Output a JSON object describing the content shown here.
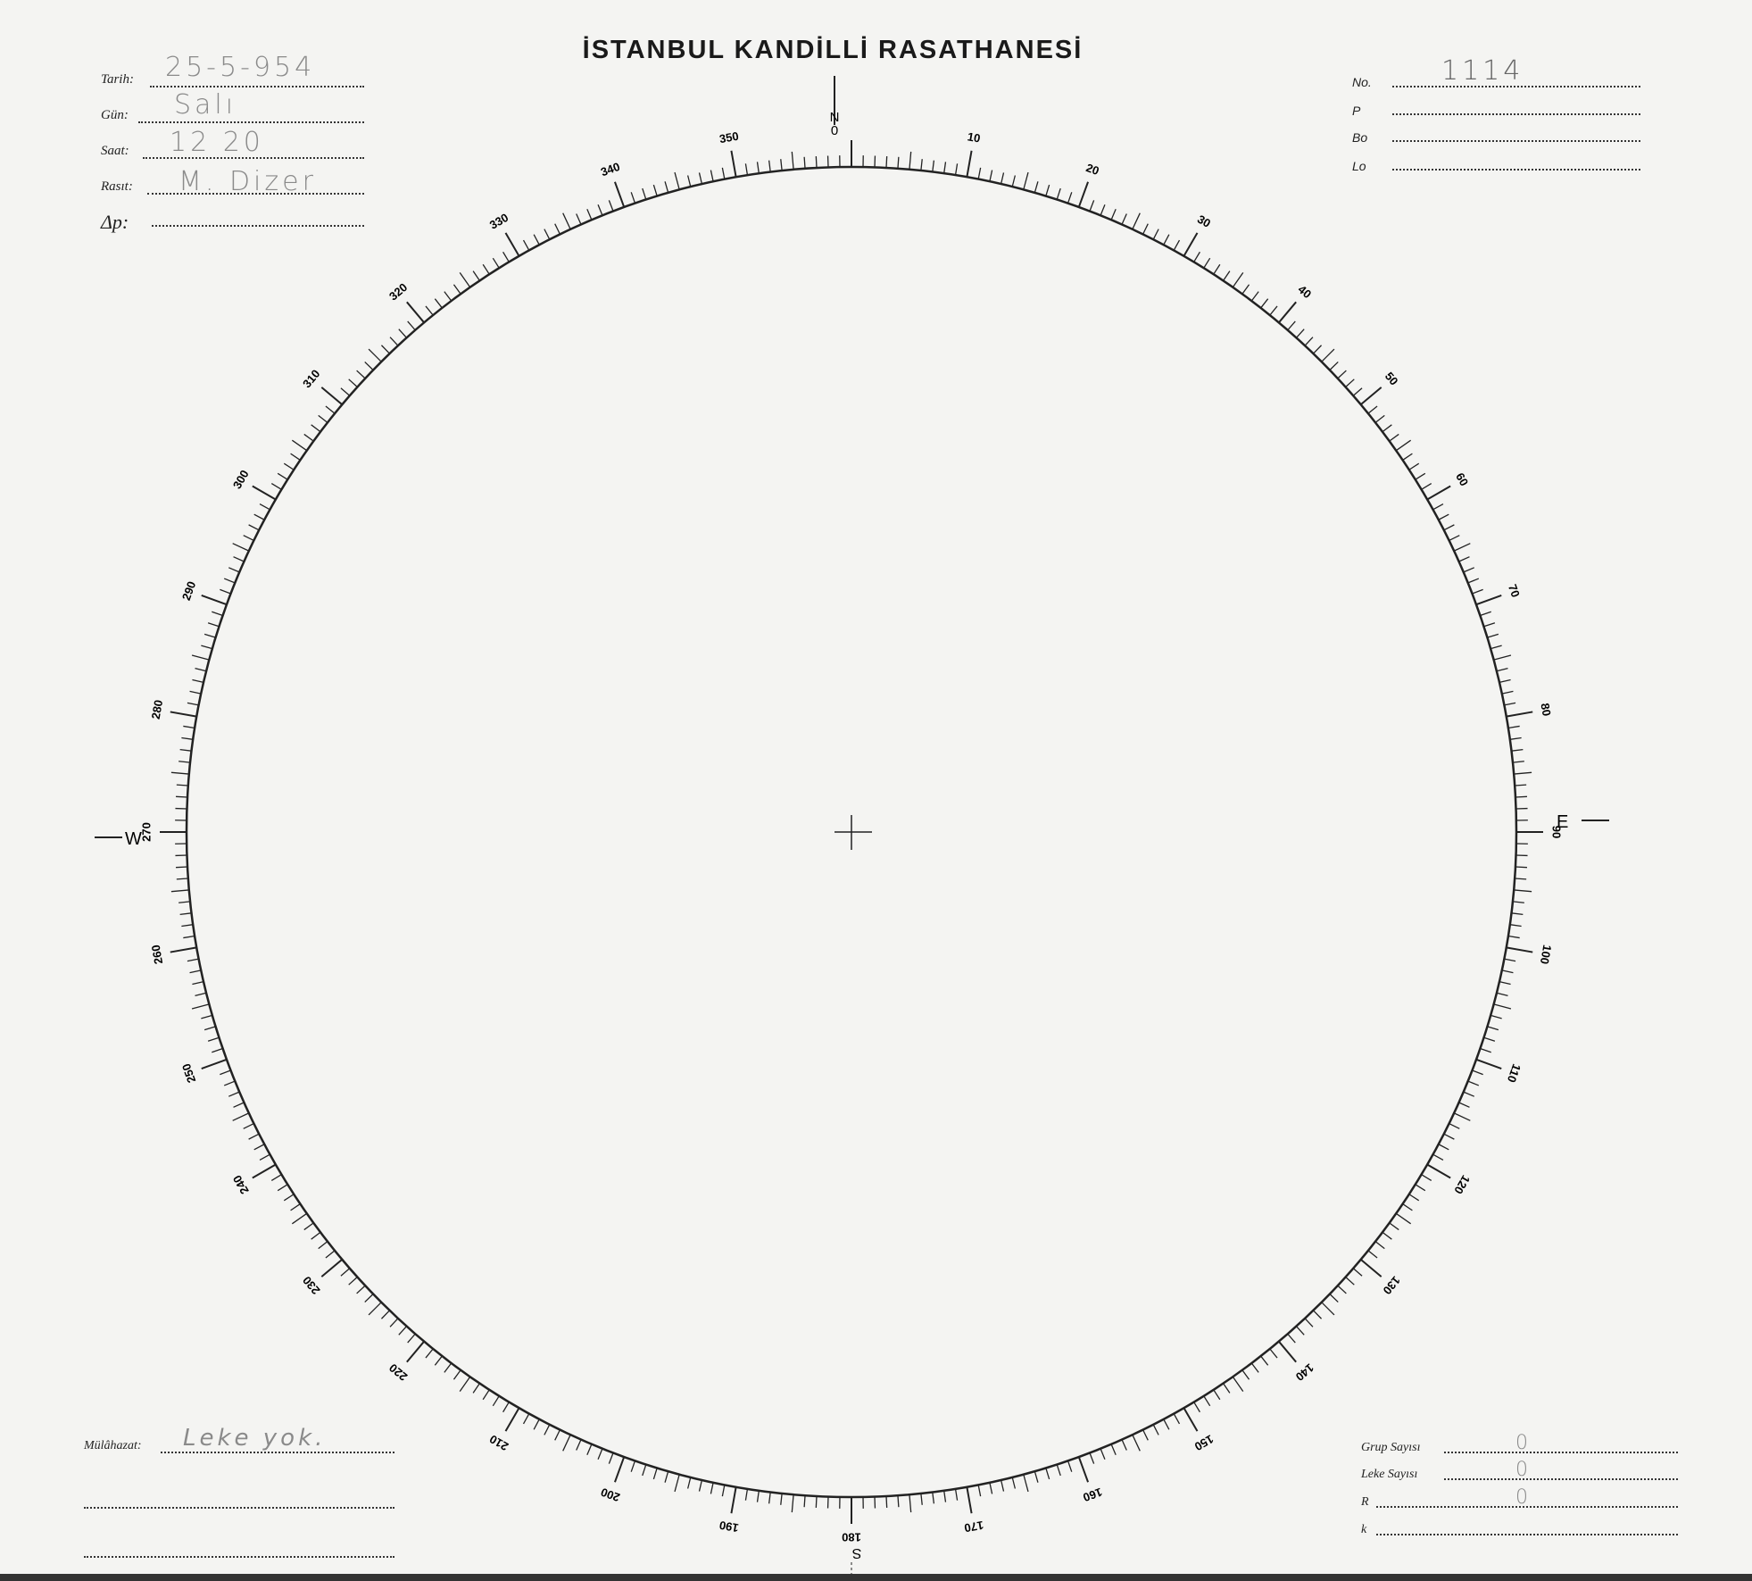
{
  "title": "İSTANBUL KANDİLLİ RASATHANESİ",
  "left_fields": [
    {
      "label": "Tarih:",
      "value": "25-5-954"
    },
    {
      "label": "Gün:",
      "value": "Salı"
    },
    {
      "label": "Saat:",
      "value": "12 20"
    },
    {
      "label": "Rasıt:",
      "value": "M. Dizer"
    },
    {
      "label": "Δp:",
      "value": ""
    }
  ],
  "right_fields": [
    {
      "label": "No.",
      "value": "1114"
    },
    {
      "label": "P",
      "value": ""
    },
    {
      "label": "Bo",
      "value": ""
    },
    {
      "label": "Lo",
      "value": ""
    }
  ],
  "remarks": {
    "label": "Mülâhazat:",
    "value": "Leke yok."
  },
  "counts": [
    {
      "label": "Grup Sayısı",
      "value": "0"
    },
    {
      "label": "Leke Sayısı",
      "value": "0"
    },
    {
      "label": "R",
      "value": "0"
    },
    {
      "label": "k",
      "value": ""
    }
  ],
  "compass": {
    "north": "N",
    "south": "S",
    "east": "E",
    "west": "W",
    "zero": "0",
    "label_step_degrees": 10,
    "tick_step_degrees": 1
  }
}
